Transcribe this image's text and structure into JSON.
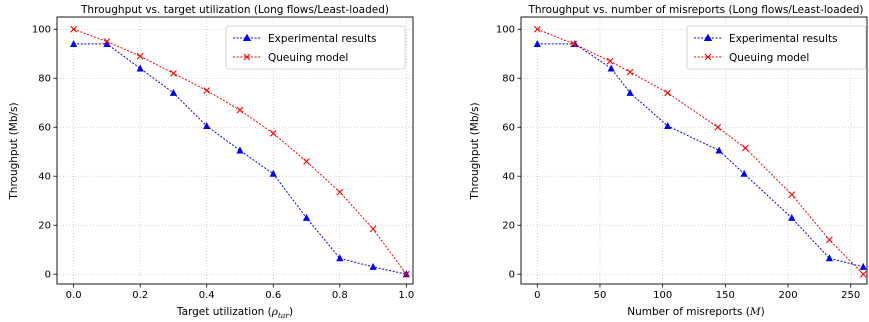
{
  "chart_data": [
    {
      "type": "line",
      "title": "Throughput vs. target utilization (Long flows/Least-loaded)",
      "xlabel": "Target utilization (ρ_tar)",
      "xlabel_main": "Target utilization (",
      "xlabel_sym": "ρ",
      "xlabel_sub": "tar",
      "xlabel_end": ")",
      "ylabel": "Throughput (Mb/s)",
      "xlim": [
        -0.05,
        1.02
      ],
      "ylim": [
        -4,
        105
      ],
      "xticks": [
        0.0,
        0.2,
        0.4,
        0.6,
        0.8,
        1.0
      ],
      "xtick_labels": [
        "0.0",
        "0.2",
        "0.4",
        "0.6",
        "0.8",
        "1.0"
      ],
      "yticks": [
        0,
        20,
        40,
        60,
        80,
        100
      ],
      "ytick_labels": [
        "0",
        "20",
        "40",
        "60",
        "80",
        "100"
      ],
      "grid": true,
      "legend_position": "top-right",
      "series": [
        {
          "name": "Experimental results",
          "color": "#0000ff",
          "marker": "triangle",
          "x": [
            0.0,
            0.1,
            0.2,
            0.3,
            0.4,
            0.5,
            0.6,
            0.7,
            0.8,
            0.9,
            1.0
          ],
          "y": [
            94,
            94,
            84,
            74,
            60.5,
            50.5,
            41,
            23,
            6.5,
            3,
            0
          ]
        },
        {
          "name": "Queuing model",
          "color": "#ff0000",
          "marker": "x",
          "x": [
            0.0,
            0.1,
            0.2,
            0.3,
            0.4,
            0.5,
            0.6,
            0.7,
            0.8,
            0.9,
            1.0
          ],
          "y": [
            100,
            95,
            89,
            82,
            75,
            67,
            57.5,
            46,
            33.5,
            18.5,
            0
          ]
        }
      ]
    },
    {
      "type": "line",
      "title": "Throughput vs. number of misreports (Long flows/Least-loaded)",
      "xlabel": "Number of misreports (M)",
      "xlabel_main": "Number of misreports (",
      "xlabel_sym": "M",
      "xlabel_sub": "",
      "xlabel_end": ")",
      "ylabel": "Throughput (Mb/s)",
      "xlim": [
        -13,
        263
      ],
      "ylim": [
        -4,
        105
      ],
      "xticks": [
        0,
        50,
        100,
        150,
        200,
        250
      ],
      "xtick_labels": [
        "0",
        "50",
        "100",
        "150",
        "200",
        "250"
      ],
      "yticks": [
        0,
        20,
        40,
        60,
        80,
        100
      ],
      "ytick_labels": [
        "0",
        "20",
        "40",
        "60",
        "80",
        "100"
      ],
      "grid": true,
      "legend_position": "top-right",
      "series": [
        {
          "name": "Experimental results",
          "color": "#0000ff",
          "marker": "triangle",
          "x": [
            0,
            30,
            59,
            74,
            104,
            145,
            165,
            203,
            233,
            260
          ],
          "y": [
            94,
            94,
            84,
            74,
            60.5,
            50.5,
            41,
            23,
            6.5,
            3
          ]
        },
        {
          "name": "Queuing model",
          "color": "#ff0000",
          "marker": "x",
          "x": [
            0,
            29,
            58,
            74,
            104,
            144,
            166,
            203,
            233,
            260
          ],
          "y": [
            100,
            94,
            87,
            82.5,
            74,
            60,
            51.5,
            32.5,
            14,
            0
          ]
        }
      ]
    }
  ]
}
